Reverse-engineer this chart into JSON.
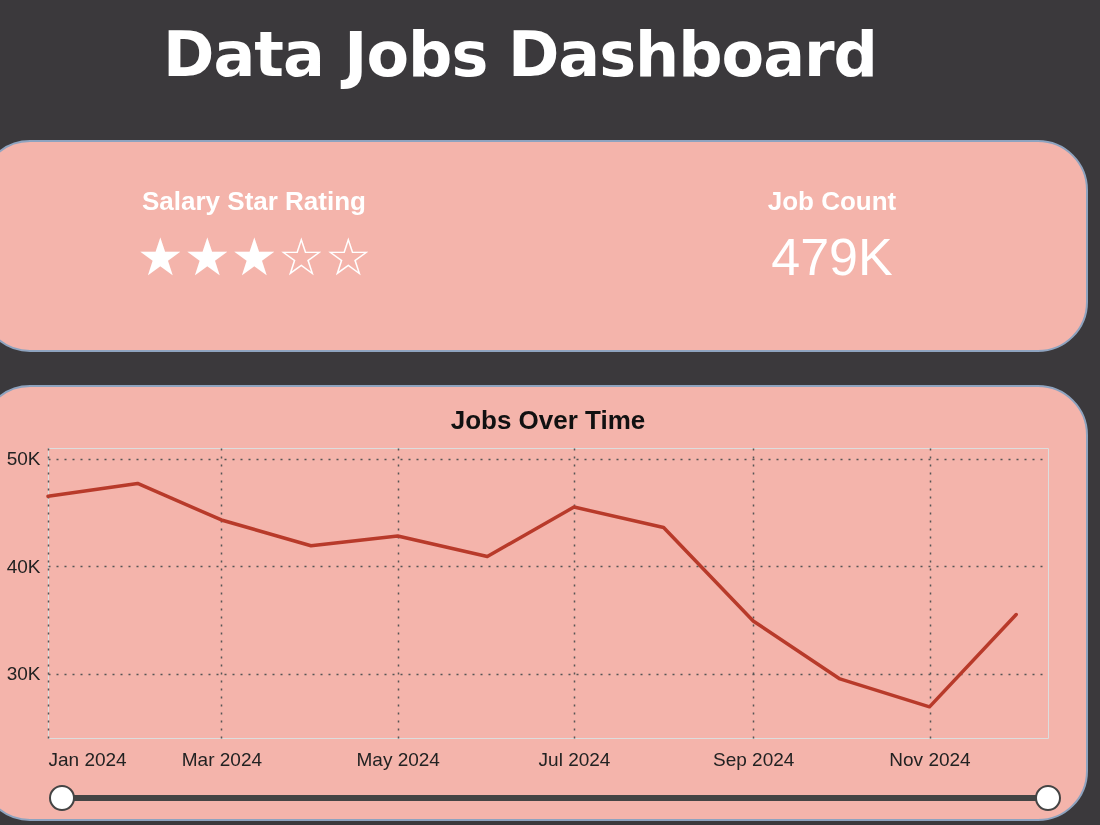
{
  "chart_data": [
    {
      "type": "other",
      "title": "Data Jobs Dashboard",
      "categories": [
        "Salary Star Rating",
        "Job Count"
      ],
      "value_labels": [
        "★★★☆☆",
        "479K"
      ]
    },
    {
      "type": "line",
      "title": "Jobs Over Time",
      "x": [
        "2024-01",
        "2024-02",
        "2024-03",
        "2024-04",
        "2024-05",
        "2024-06",
        "2024-07",
        "2024-08",
        "2024-09",
        "2024-10",
        "2024-11",
        "2024-12"
      ],
      "series": [
        {
          "color": "#b83a2a",
          "values": [
            46.5,
            47.7,
            44.3,
            41.9,
            42.8,
            40.9,
            45.5,
            43.6,
            34.9,
            29.5,
            26.9,
            35.5
          ]
        }
      ],
      "xlim": [
        "2024-01-01",
        "2024-12-12"
      ],
      "xticks": [
        {
          "value": "2024-01",
          "label": "Jan 2024"
        },
        {
          "value": "2024-03",
          "label": "Mar 2024"
        },
        {
          "value": "2024-05",
          "label": "May 2024"
        },
        {
          "value": "2024-07",
          "label": "Jul 2024"
        },
        {
          "value": "2024-09",
          "label": "Sep 2024"
        },
        {
          "value": "2024-11",
          "label": "Nov 2024"
        }
      ],
      "ylim": [
        24,
        51
      ],
      "yticks": [
        {
          "value": 30,
          "label": "30K"
        },
        {
          "value": 40,
          "label": "40K"
        },
        {
          "value": 50,
          "label": "50K"
        }
      ],
      "grid": true,
      "line_style": "solid",
      "marker": "none"
    }
  ]
}
